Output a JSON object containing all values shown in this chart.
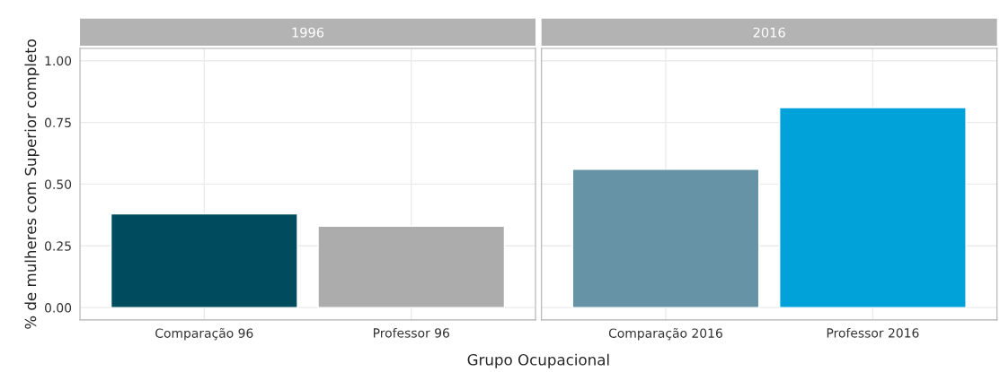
{
  "chart_data": [
    {
      "type": "bar",
      "title": "1996",
      "categories": [
        "Comparação 96",
        "Professor 96"
      ],
      "values": [
        0.38,
        0.33
      ],
      "colors": [
        "#004c5f",
        "#acacac"
      ],
      "ylim": [
        -0.05,
        1.05
      ],
      "yticks": [
        {
          "value": 0,
          "label": "0.00"
        },
        {
          "value": 0.25,
          "label": "0.25"
        },
        {
          "value": 0.5,
          "label": "0.50"
        },
        {
          "value": 0.75,
          "label": "0.75"
        },
        {
          "value": 1,
          "label": "1.00"
        }
      ],
      "ylabel": "% de mulheres com Superior completo",
      "xlabel": "Grupo Ocupacional",
      "grid": true
    },
    {
      "type": "bar",
      "title": "2016",
      "categories": [
        "Comparação 2016",
        "Professor 2016"
      ],
      "values": [
        0.56,
        0.81
      ],
      "colors": [
        "#6793a6",
        "#00a2d9"
      ],
      "ylim": [
        -0.05,
        1.05
      ],
      "yticks": [
        {
          "value": 0,
          "label": null
        },
        {
          "value": 0.25,
          "label": null
        },
        {
          "value": 0.5,
          "label": null
        },
        {
          "value": 0.75,
          "label": null
        },
        {
          "value": 1,
          "label": null
        }
      ],
      "tick_labels": "x",
      "grid": true
    }
  ]
}
